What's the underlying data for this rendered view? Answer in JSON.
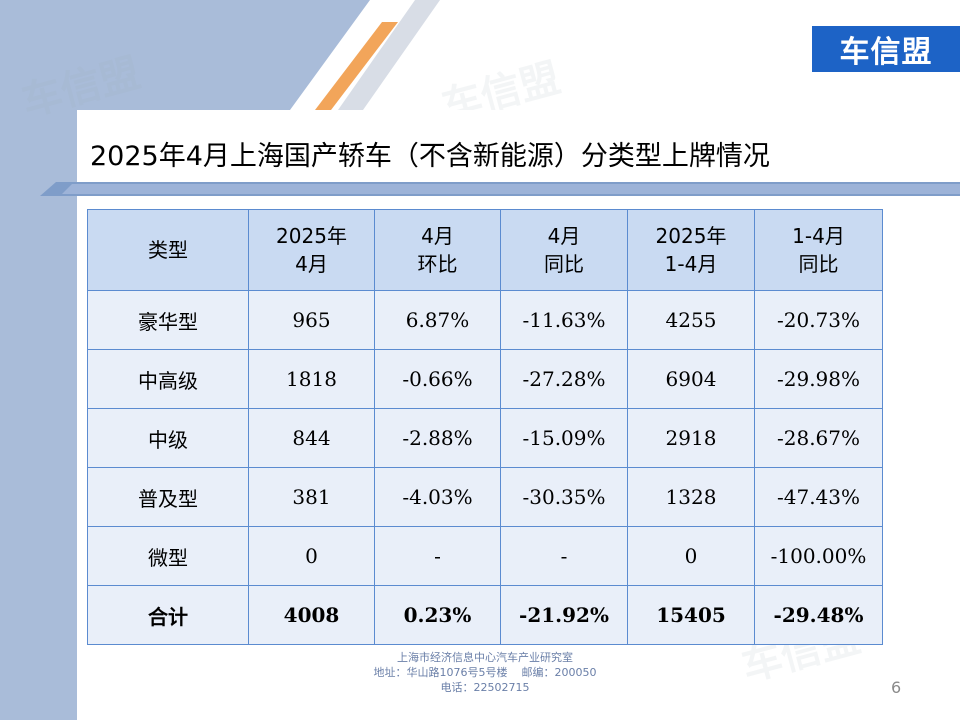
{
  "logo": {
    "text": "车信盟"
  },
  "watermark": "车信盟",
  "title": "2025年4月上海国产轿车（不含新能源）分类型上牌情况",
  "table": {
    "headers": [
      {
        "line1": "类型",
        "line2": ""
      },
      {
        "line1": "2025年",
        "line2": "4月"
      },
      {
        "line1": "4月",
        "line2": "环比"
      },
      {
        "line1": "4月",
        "line2": "同比"
      },
      {
        "line1": "2025年",
        "line2": "1-4月"
      },
      {
        "line1": "1-4月",
        "line2": "同比"
      }
    ],
    "rows": [
      [
        "豪华型",
        "965",
        "6.87%",
        "-11.63%",
        "4255",
        "-20.73%"
      ],
      [
        "中高级",
        "1818",
        "-0.66%",
        "-27.28%",
        "6904",
        "-29.98%"
      ],
      [
        "中级",
        "844",
        "-2.88%",
        "-15.09%",
        "2918",
        "-28.67%"
      ],
      [
        "普及型",
        "381",
        "-4.03%",
        "-30.35%",
        "1328",
        "-47.43%"
      ],
      [
        "微型",
        "0",
        "-",
        "-",
        "0",
        "-100.00%"
      ]
    ],
    "total": [
      "合计",
      "4008",
      "0.23%",
      "-21.92%",
      "15405",
      "-29.48%"
    ]
  },
  "footer": {
    "line1": "上海市经济信息中心汽车产业研究室",
    "line2": "地址：华山路1076号5号楼    邮编：200050",
    "line3": "电话：22502715"
  },
  "page_number": "6",
  "colors": {
    "band": "#a9bcd9",
    "accent_orange": "#f2a55a",
    "accent_blue": "#1d63c6",
    "header_fill": "#c9daf2",
    "cell_fill": "#e9eff9",
    "border": "#5b8bd0"
  }
}
